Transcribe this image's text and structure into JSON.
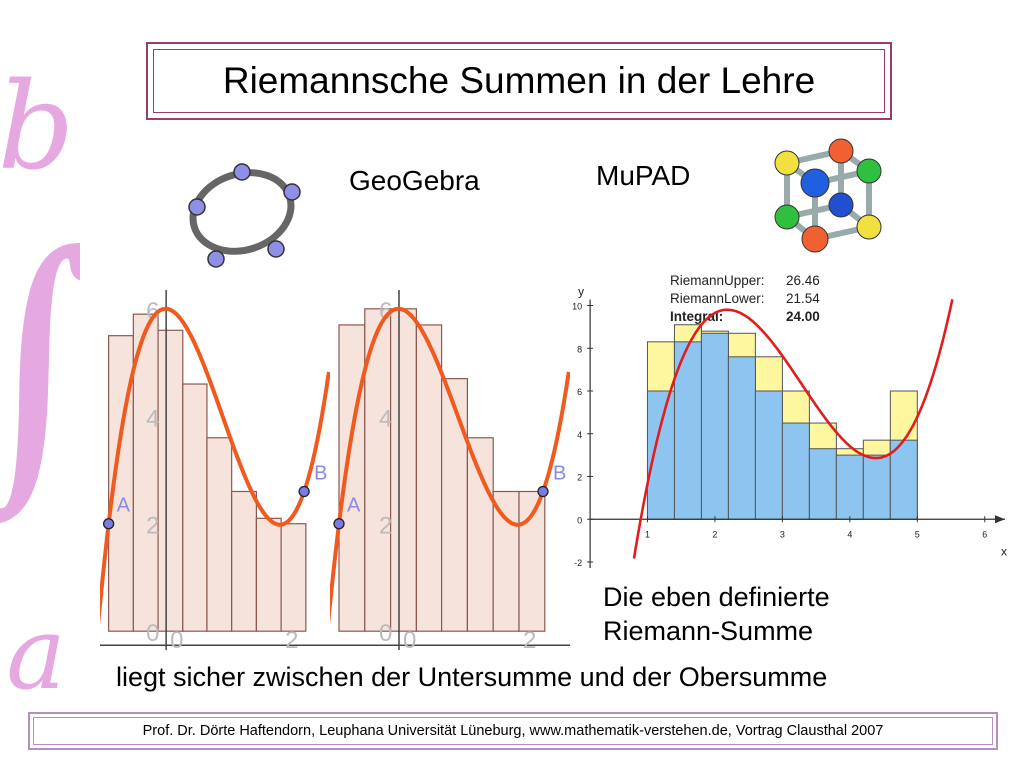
{
  "slide": {
    "title": "Riemannsche Summen in der Lehre",
    "label_geogebra": "GeoGebra",
    "label_mupad": "MuPAD",
    "caption_line1": "Die eben definierte",
    "caption_line2": "Riemann-Summe",
    "caption_line3": "liegt sicher zwischen der Untersumme und der Obersumme",
    "footer": "Prof. Dr. Dörte Haftendorn, Leuphana Universität Lüneburg, www.mathematik-verstehen.de,  Vortrag Clausthal 2007",
    "side_symbol_upper": "b",
    "side_symbol_integral": "∫",
    "side_symbol_lower": "a",
    "accent_color": "#e6a8e0",
    "frame_color": "#9a3c6f"
  },
  "chart_data": [
    {
      "type": "bar",
      "panel": "geogebra-left",
      "y_tick_labels": [
        "6",
        "4",
        "2",
        "0"
      ],
      "x_tick_labels": [
        "0",
        "2"
      ],
      "point_labels": [
        "A",
        "B"
      ],
      "point_coords": [
        [
          -1,
          2
        ],
        [
          2.4,
          2.6
        ]
      ],
      "bar_edges": [
        -1,
        -0.57,
        -0.14,
        0.29,
        0.71,
        1.14,
        1.57,
        2.0,
        2.43
      ],
      "bar_values": [
        5.5,
        5.9,
        5.6,
        4.6,
        3.6,
        2.6,
        2.1,
        2.0
      ],
      "xlim": [
        -1.15,
        2.85
      ],
      "ylim": [
        -0.35,
        6.35
      ]
    },
    {
      "type": "bar",
      "panel": "geogebra-right",
      "y_tick_labels": [
        "6",
        "4",
        "2",
        "0"
      ],
      "x_tick_labels": [
        "0",
        "2"
      ],
      "point_labels": [
        "A",
        "B"
      ],
      "point_coords": [
        [
          -1,
          2
        ],
        [
          2.4,
          2.6
        ]
      ],
      "bar_edges": [
        -1,
        -0.57,
        -0.14,
        0.29,
        0.71,
        1.14,
        1.57,
        2.0,
        2.43
      ],
      "bar_values": [
        5.7,
        6.0,
        6.0,
        5.7,
        4.7,
        3.6,
        2.6,
        2.6
      ],
      "xlim": [
        -1.15,
        2.85
      ],
      "ylim": [
        -0.35,
        6.35
      ]
    },
    {
      "type": "bar",
      "panel": "mupad",
      "info_lines": [
        {
          "label": "RiemannUpper:",
          "value": "26.46"
        },
        {
          "label": "RiemannLower:",
          "value": "21.54"
        },
        {
          "label": "Integral:",
          "value": "24.00"
        }
      ],
      "xlabel": "x",
      "ylabel": "y",
      "x_ticks": [
        1,
        2,
        3,
        4,
        5,
        6
      ],
      "y_ticks": [
        -2,
        0,
        2,
        4,
        6,
        8,
        10
      ],
      "xlim": [
        0,
        6.3
      ],
      "ylim": [
        -2,
        10
      ],
      "bar_edges": [
        1,
        1.4,
        1.8,
        2.2,
        2.6,
        3.0,
        3.4,
        3.8,
        4.2,
        4.6,
        5.0
      ],
      "lower": [
        6.0,
        8.3,
        8.7,
        7.6,
        6.0,
        4.5,
        3.3,
        3.0,
        3.0,
        3.7
      ],
      "upper": [
        8.3,
        9.1,
        8.8,
        8.7,
        7.6,
        6.0,
        4.5,
        3.3,
        3.7,
        6.0
      ],
      "colors": {
        "lower": "#8ec5f0",
        "upper": "#fff7a0",
        "curve": "#e21d1d"
      }
    }
  ]
}
